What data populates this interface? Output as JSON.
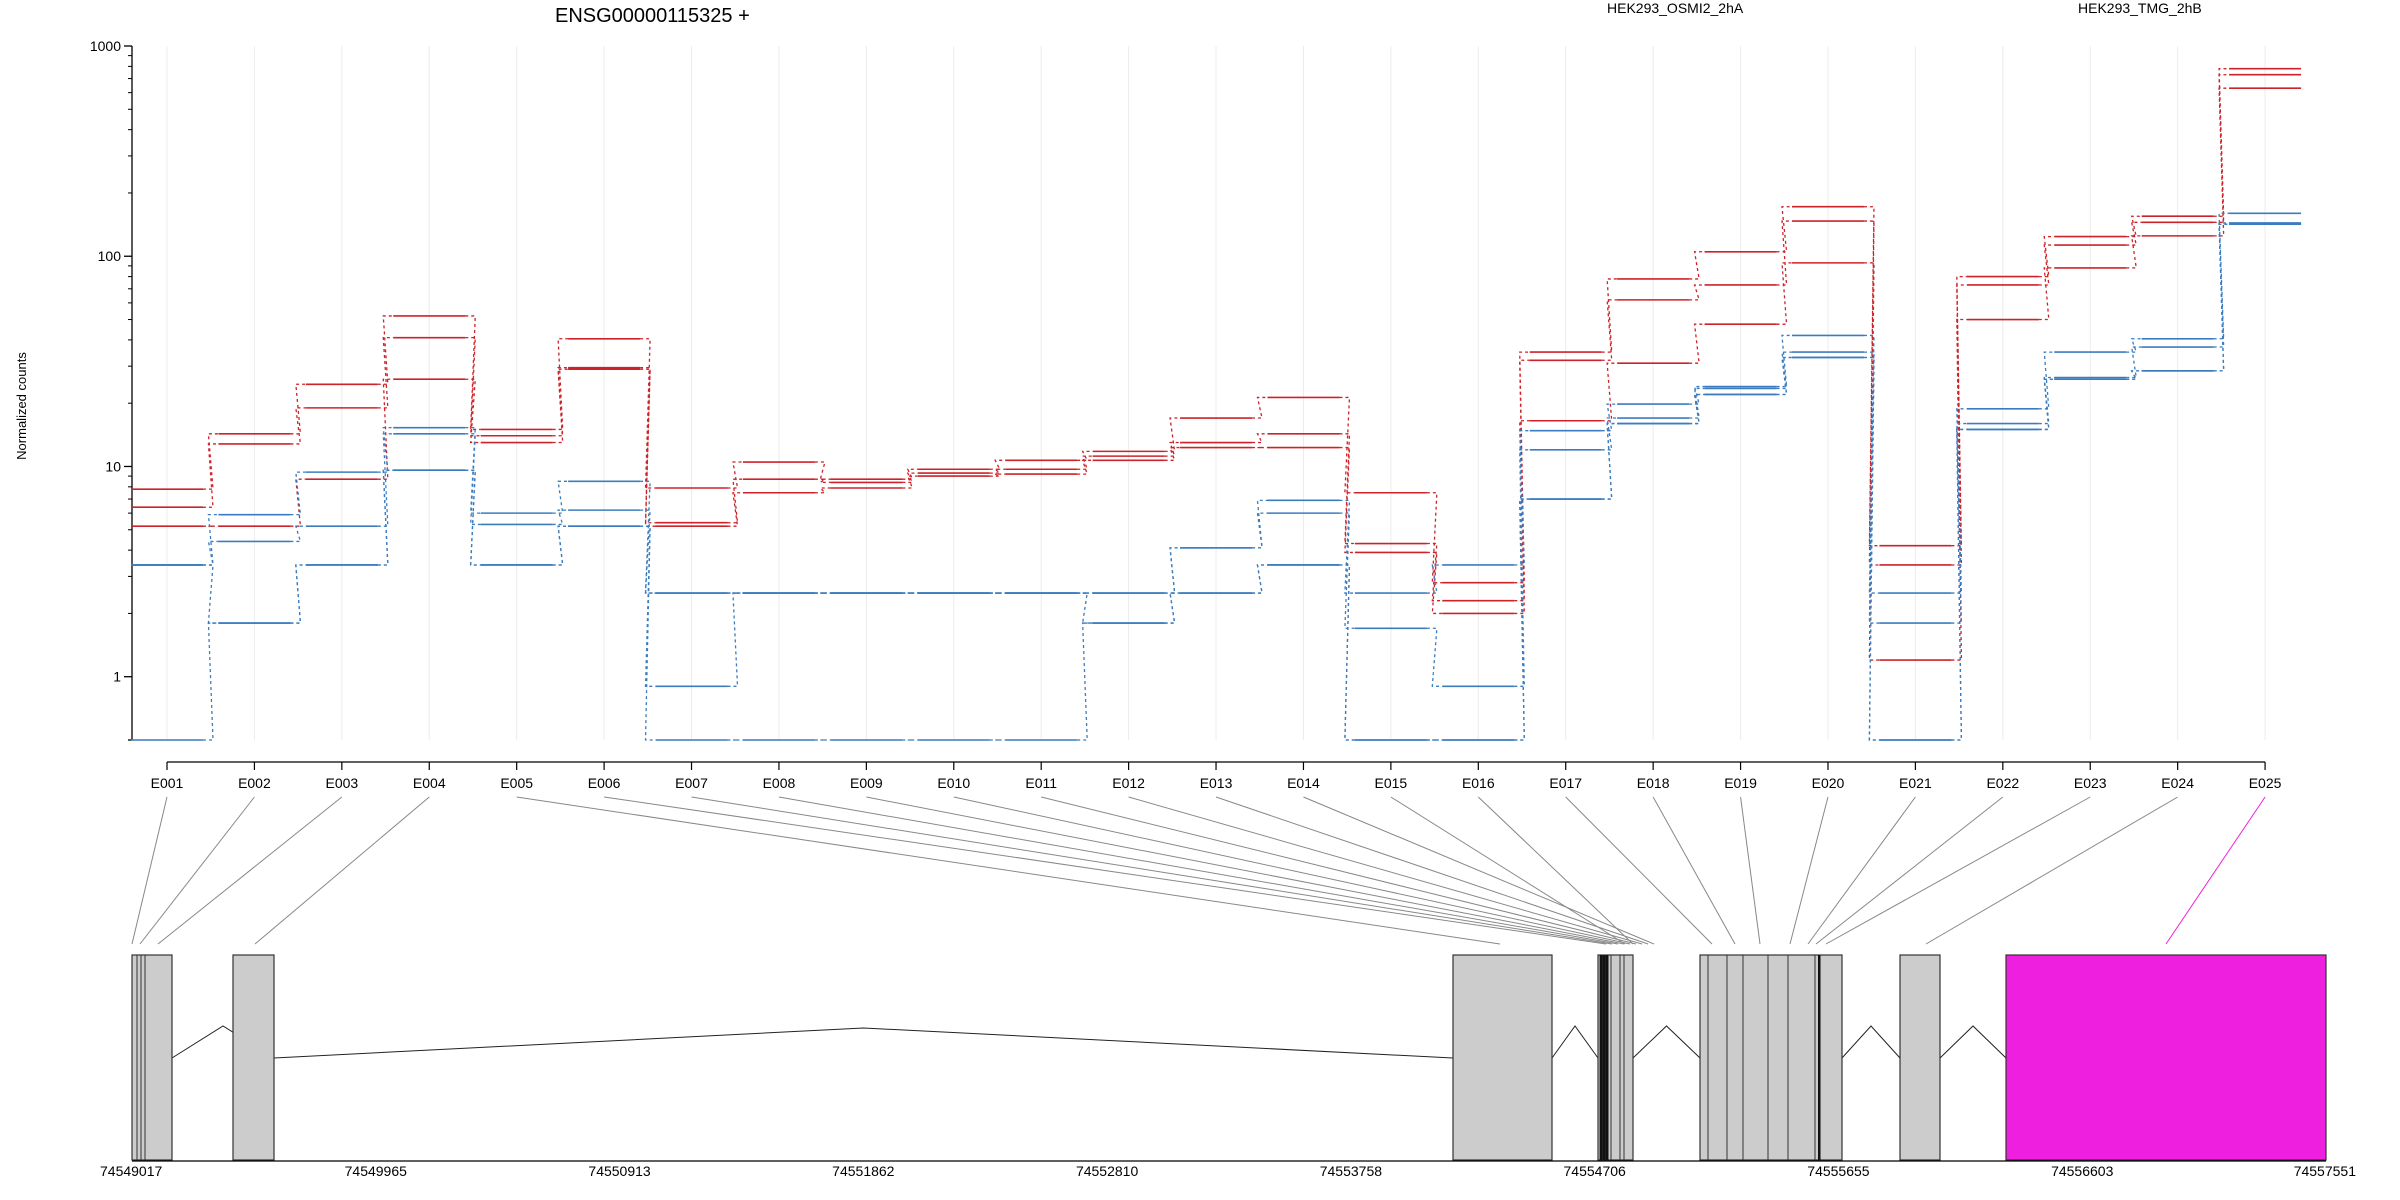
{
  "chart_data": {
    "type": "line",
    "title": "ENSG00000115325 +",
    "ylabel": "Normalized counts",
    "xlabel": "",
    "y_scale": "log",
    "ylim": [
      0.5,
      1000
    ],
    "y_ticks": [
      1,
      10,
      100,
      1000
    ],
    "y_tick_labels": [
      "1",
      "10",
      "100",
      "1000"
    ],
    "legend_placement": "top",
    "categories": [
      "E001",
      "E002",
      "E003",
      "E004",
      "E005",
      "E006",
      "E007",
      "E008",
      "E009",
      "E010",
      "E011",
      "E012",
      "E013",
      "E014",
      "E015",
      "E016",
      "E017",
      "E018",
      "E019",
      "E020",
      "E021",
      "E022",
      "E023",
      "E024",
      "E025"
    ],
    "groups": [
      {
        "name": "HEK293_OSMI2_2hA",
        "color": "#cc2229"
      },
      {
        "name": "HEK293_TMG_2hB",
        "color": "#3b7cbf"
      }
    ],
    "series": [
      {
        "group": 0,
        "values": [
          7.8,
          14.3,
          24.6,
          52,
          15,
          40.5,
          7.9,
          10.5,
          8.7,
          9.7,
          10.7,
          11.8,
          17,
          21.3,
          7.5,
          2.8,
          35,
          78,
          105,
          172,
          4.2,
          80,
          124,
          155,
          780
        ]
      },
      {
        "group": 0,
        "values": [
          6.4,
          12.8,
          19,
          41,
          14,
          29.5,
          5.4,
          8.7,
          8.4,
          9.3,
          9.7,
          11.2,
          13,
          14.3,
          4.3,
          2.3,
          32,
          62,
          73,
          147,
          3.4,
          73,
          113,
          145,
          730
        ]
      },
      {
        "group": 0,
        "values": [
          5.2,
          5.2,
          8.7,
          26,
          13,
          29,
          5.2,
          7.5,
          7.9,
          9,
          9.2,
          10.7,
          12.3,
          12.3,
          3.9,
          2,
          16.5,
          31,
          47.5,
          93,
          1.2,
          50,
          88,
          125,
          630
        ]
      },
      {
        "group": 1,
        "values": [
          3.4,
          5.9,
          9.4,
          15.3,
          6,
          8.5,
          2.5,
          2.5,
          2.5,
          2.5,
          2.5,
          2.5,
          4.1,
          6.9,
          2.5,
          3.4,
          14.8,
          19.8,
          24,
          42,
          2.5,
          18.8,
          35,
          40.5,
          160
        ]
      },
      {
        "group": 1,
        "values": [
          3.4,
          4.4,
          5.2,
          14.3,
          5.3,
          6.2,
          2.5,
          2.5,
          2.5,
          2.5,
          2.5,
          2.5,
          4.1,
          6,
          1.7,
          0.9,
          12,
          17,
          23.5,
          35,
          1.8,
          16,
          26.5,
          37,
          144
        ]
      },
      {
        "group": 1,
        "values": [
          3.4,
          1.8,
          3.4,
          9.6,
          3.4,
          5.2,
          0.9,
          2.5,
          2.5,
          2.5,
          2.5,
          1.8,
          2.5,
          3.4,
          0.5,
          0.5,
          7,
          16,
          22,
          33,
          0.5,
          15,
          26,
          28.5,
          142
        ]
      },
      {
        "group": 1,
        "values": [
          0.5,
          1.8,
          3.4,
          9.6,
          3.4,
          5.2,
          0.5,
          0.5,
          0.5,
          0.5,
          0.5,
          1.8,
          2.5,
          3.4,
          0.5,
          0.5,
          7,
          16,
          22,
          33,
          0.5,
          15,
          26,
          28.5,
          142
        ]
      }
    ],
    "gene_model": {
      "coordinate_labels": [
        "74549017",
        "74549965",
        "74550913",
        "74551862",
        "74552810",
        "74553758",
        "74554706",
        "74555655",
        "74556603",
        "74557551"
      ],
      "highlighted_exon": "E025",
      "exon_fill": "#cccccc",
      "highlight_fill": "#ef1fe0"
    }
  }
}
